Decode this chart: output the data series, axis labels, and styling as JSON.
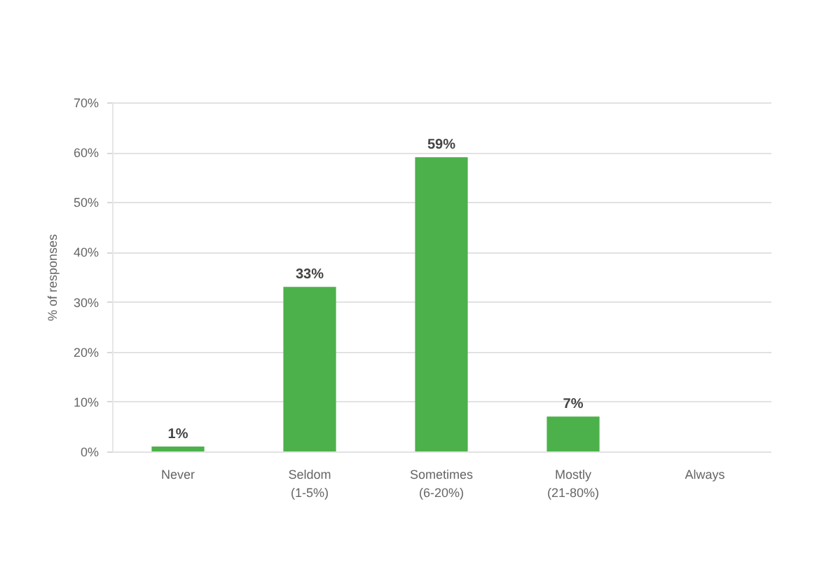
{
  "chart_data": {
    "type": "bar",
    "ylabel": "% of responses",
    "categories": [
      "Never",
      "Seldom (1-5%)",
      "Sometimes (6-20%)",
      "Mostly (21-80%)",
      "Always"
    ],
    "values": [
      1,
      33,
      59,
      7,
      null
    ],
    "color": "#4cb14a",
    "value_labels": [
      "1%",
      "33%",
      "59%",
      "7%",
      null
    ],
    "ylim": [
      0,
      70
    ],
    "yticks": [
      {
        "value": 0,
        "label": "0%"
      },
      {
        "value": 10,
        "label": "10%"
      },
      {
        "value": 20,
        "label": "20%"
      },
      {
        "value": 30,
        "label": "30%"
      },
      {
        "value": 40,
        "label": "40%"
      },
      {
        "value": 50,
        "label": "50%"
      },
      {
        "value": 60,
        "label": "60%"
      },
      {
        "value": 70,
        "label": "70%"
      }
    ],
    "grid": "y"
  }
}
